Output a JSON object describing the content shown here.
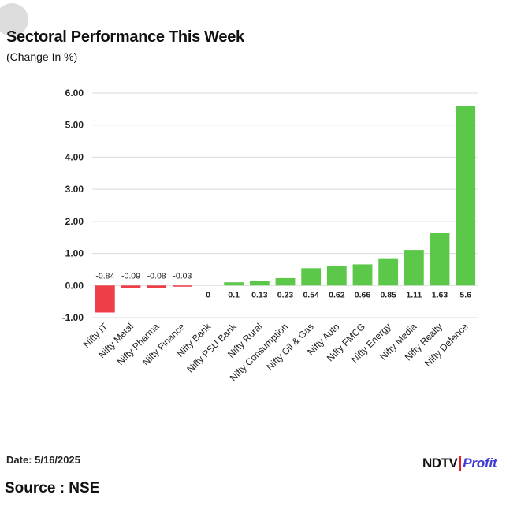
{
  "header": {
    "title": "Sectoral Performance This Week",
    "subtitle": "(Change In %)"
  },
  "footer": {
    "date": "Date: 5/16/2025",
    "source": "Source : NSE"
  },
  "brand": {
    "ndtv": "NDTV",
    "profit": "Profit"
  },
  "colors": {
    "positive": "#5cc84a",
    "negative": "#ee3f48",
    "grid": "#d9d9d9",
    "brand_blue": "#3f3ad6",
    "brand_red": "#e42027"
  },
  "chart_data": {
    "type": "bar",
    "title": "Sectoral Performance This Week",
    "subtitle": "(Change In %)",
    "xlabel": "",
    "ylabel": "",
    "categories": [
      "Nifty IT",
      "Nifty Metal",
      "Nifty Pharma",
      "Nifty Finance",
      "Nifty Bank",
      "Nifty PSU Bank",
      "Nifty Rural",
      "Nifty Consumption",
      "Nifty Oil & Gas",
      "Nifty Auto",
      "Nifty FMCG",
      "Nifty Energy",
      "Nifty Media",
      "Nifty Realty",
      "Nifty Defence"
    ],
    "values": [
      -0.84,
      -0.09,
      -0.08,
      -0.03,
      0,
      0.1,
      0.13,
      0.23,
      0.54,
      0.62,
      0.66,
      0.85,
      1.11,
      1.63,
      5.6
    ],
    "data_labels": [
      "-0.84",
      "-0.09",
      "-0.08",
      "-0.03",
      "0",
      "0.1",
      "0.13",
      "0.23",
      "0.54",
      "0.62",
      "0.66",
      "0.85",
      "1.11",
      "1.63",
      "5.6"
    ],
    "yticks": [
      "6.00",
      "5.00",
      "4.00",
      "3.00",
      "2.00",
      "1.00",
      "0.00",
      "-1.00"
    ],
    "ytick_values": [
      6,
      5,
      4,
      3,
      2,
      1,
      0,
      -1
    ],
    "ylim": [
      -1,
      6
    ],
    "grid": true,
    "legend": "none"
  }
}
